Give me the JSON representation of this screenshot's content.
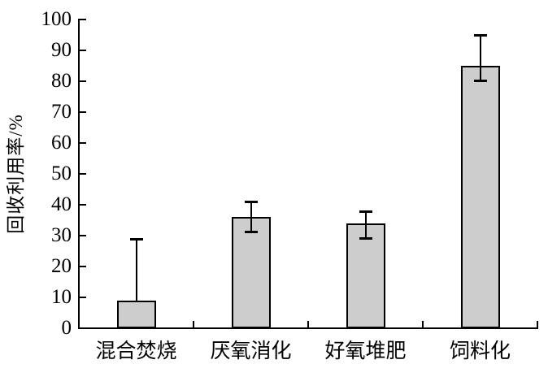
{
  "chart_data": {
    "type": "bar",
    "title": "",
    "ylabel": "回收利用率/%",
    "xlabel": "",
    "ylim": [
      0,
      100
    ],
    "ytick_step": 10,
    "ytick_labels": [
      "0",
      "10",
      "20",
      "30",
      "40",
      "50",
      "60",
      "70",
      "80",
      "90",
      "100"
    ],
    "categories": [
      "混合焚烧",
      "厌氧消化",
      "好氧堆肥",
      "饲料化"
    ],
    "values": [
      9,
      36,
      34,
      85
    ],
    "error_bars": [
      {
        "whisker_top": 29,
        "whisker_bottom": null
      },
      {
        "whisker_top": 41,
        "whisker_bottom": 31
      },
      {
        "whisker_top": 38,
        "whisker_bottom": 29
      },
      {
        "whisker_top": 95,
        "whisker_bottom": 80
      }
    ],
    "bar_color": "#cdcdcd",
    "line_color": "#000000",
    "background": "#ffffff",
    "grid": false,
    "legend": false
  }
}
